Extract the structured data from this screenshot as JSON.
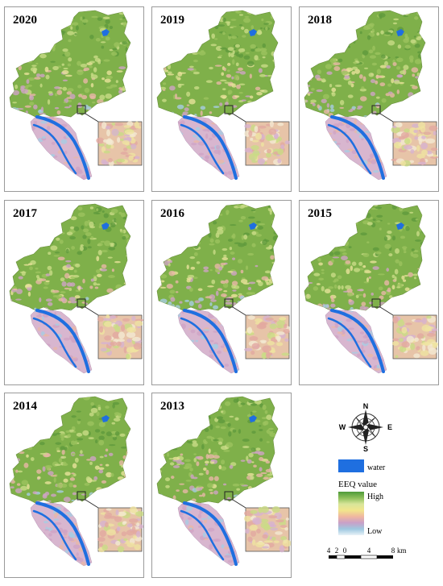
{
  "panels": [
    {
      "year": "2020"
    },
    {
      "year": "2019"
    },
    {
      "year": "2018"
    },
    {
      "year": "2017"
    },
    {
      "year": "2016"
    },
    {
      "year": "2015"
    },
    {
      "year": "2014"
    },
    {
      "year": "2013"
    }
  ],
  "legend": {
    "compass": {
      "n": "N",
      "s": "S",
      "e": "E",
      "w": "W"
    },
    "water_label": "water",
    "eeq_title": "EEQ value",
    "high_label": "High",
    "low_label": "Low",
    "water_color": "#1f6fe0",
    "gradient_colors": [
      "#4e9a3a",
      "#8dbf5a",
      "#d9e59a",
      "#f1e58c",
      "#f0b7a0",
      "#c9a0c8",
      "#9ec8e0",
      "#e8f2f8"
    ]
  },
  "scale_bar": {
    "ticks": [
      "4",
      "2",
      "0",
      "4",
      "8"
    ],
    "unit": "km"
  }
}
